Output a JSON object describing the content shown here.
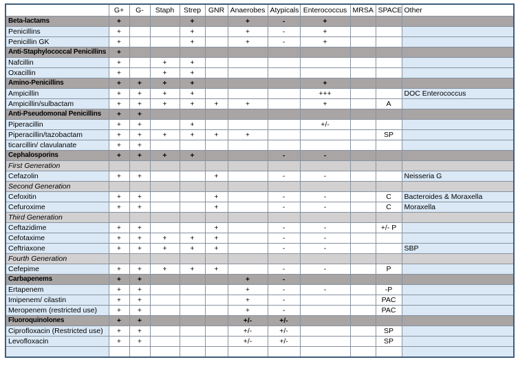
{
  "colors": {
    "positive_green": "#e2efda",
    "negative_red": "#f9998a",
    "partial_yellow": "#fcf0c8",
    "category_gray": "#a9a5a5",
    "generation_gray": "#d2d0d0",
    "label_blue": "#dbe9f6",
    "outer_border": "#3e5c7a"
  },
  "table": {
    "columns": [
      "",
      "G+",
      "G-",
      "Staph",
      "Strep",
      "GNR",
      "Anaerobes",
      "Atypicals",
      "Enterococcus",
      "MRSA",
      "SPACE",
      "Other"
    ],
    "rows": [
      {
        "label": "Beta-lactams",
        "type": "category",
        "cells": [
          "+",
          "",
          "",
          "+",
          "",
          "+",
          "-",
          "+",
          "",
          "",
          ""
        ]
      },
      {
        "label": "Penicillins",
        "type": "drug",
        "cells": [
          "+|g",
          "",
          "",
          "+|g",
          "",
          "+|g",
          "-|r",
          "+|g",
          "",
          "",
          ""
        ]
      },
      {
        "label": "Penicillin GK",
        "type": "drug",
        "cells": [
          "+|g",
          "",
          "",
          "+|g",
          "",
          "+|g",
          "-|r",
          "+|g",
          "",
          "",
          ""
        ]
      },
      {
        "label": "Anti-Staphylococcal Penicillins",
        "type": "category",
        "cells": [
          "+",
          "",
          "",
          "",
          "",
          "",
          "",
          "",
          "",
          "",
          ""
        ]
      },
      {
        "label": "Nafcillin",
        "type": "drug",
        "cells": [
          "+|g",
          "",
          "+|g",
          "+|g",
          "",
          "",
          "",
          "",
          "",
          "",
          ""
        ]
      },
      {
        "label": "Oxacillin",
        "type": "drug",
        "cells": [
          "+|g",
          "",
          "+|g",
          "+|g",
          "",
          "",
          "",
          "",
          "",
          "",
          ""
        ]
      },
      {
        "label": "Amino-Penicillins",
        "type": "category",
        "cells": [
          "+",
          "+",
          "+",
          "+",
          "",
          "",
          "",
          "+",
          "",
          "",
          ""
        ]
      },
      {
        "label": "Ampicillin",
        "type": "drug",
        "cells": [
          "+|g",
          "+|g",
          "+|g",
          "+|g",
          "",
          "",
          "",
          "+++|g",
          "",
          "",
          "DOC Enterococcus"
        ]
      },
      {
        "label": "Ampicillin/sulbactam",
        "type": "drug",
        "cells": [
          "+|g",
          "+|g",
          "+|g",
          "+|g",
          "+|g",
          "+|g",
          "",
          "+|g",
          "",
          "A|g",
          ""
        ]
      },
      {
        "label": "Anti-Pseudomonal Penicillins",
        "type": "category",
        "cells": [
          "+",
          "+",
          "",
          "",
          "",
          "",
          "",
          "",
          "",
          "",
          ""
        ]
      },
      {
        "label": "Piperacillin",
        "type": "drug",
        "cells": [
          "+|g",
          "+|g",
          "",
          "+|g",
          "",
          "",
          "",
          "+/-|y",
          "",
          "",
          ""
        ]
      },
      {
        "label": "Piperacillin/tazobactam",
        "type": "drug",
        "cells": [
          "+|g",
          "+|g",
          "+|g",
          "+|g",
          "+|g",
          "+|g",
          "",
          "",
          "",
          "SP|g",
          ""
        ]
      },
      {
        "label": "ticarcillin/ clavulanate",
        "type": "drug",
        "cells": [
          "+|g",
          "+|g",
          "",
          "",
          "",
          "",
          "",
          "",
          "",
          "",
          ""
        ]
      },
      {
        "label": "Cephalosporins",
        "type": "category",
        "cells": [
          "+",
          "+",
          "+",
          "+",
          "",
          "",
          "-",
          "-",
          "",
          "",
          ""
        ]
      },
      {
        "label": "First Generation",
        "type": "subheader",
        "cells": [
          "",
          "",
          "",
          "",
          "",
          "",
          "",
          "",
          "",
          "",
          ""
        ]
      },
      {
        "label": "Cefazolin",
        "type": "drug",
        "cells": [
          "+|g",
          "+|g",
          "",
          "",
          "+|g",
          "",
          "-|r",
          "-|r",
          "",
          "",
          "Neisseria G"
        ]
      },
      {
        "label": "Second Generation",
        "type": "subheader",
        "cells": [
          "",
          "",
          "",
          "",
          "",
          "",
          "",
          "",
          "",
          "",
          ""
        ]
      },
      {
        "label": "Cefoxitin",
        "type": "drug",
        "cells": [
          "+|g",
          "+|g",
          "",
          "",
          "+|g",
          "",
          "-|r",
          "-|r",
          "",
          "C|g",
          "Bacteroides & Moraxella"
        ]
      },
      {
        "label": "Cefuroxime",
        "type": "drug",
        "cells": [
          "+|g",
          "+|g",
          "",
          "",
          "+|g",
          "",
          "-|r",
          "-|r",
          "",
          "C|g",
          "Moraxella"
        ]
      },
      {
        "label": "Third Generation",
        "type": "subheader",
        "cells": [
          "",
          "",
          "",
          "",
          "",
          "",
          "",
          "",
          "",
          "",
          ""
        ]
      },
      {
        "label": "Ceftazidime",
        "type": "drug",
        "cells": [
          "+|g",
          "+|g",
          "",
          "",
          "+|g",
          "",
          "-|r",
          "-|r",
          "",
          "+/- P|y",
          ""
        ]
      },
      {
        "label": "Cefotaxime",
        "type": "drug",
        "cells": [
          "+|g",
          "+|g",
          "+|g",
          "+|g",
          "+|g",
          "",
          "-|r",
          "-|r",
          "",
          "",
          ""
        ]
      },
      {
        "label": "Ceftriaxone",
        "type": "drug",
        "cells": [
          "+|g",
          "+|g",
          "+|g",
          "+|g",
          "+|g",
          "",
          "-|r",
          "-|r",
          "",
          "",
          "SBP"
        ]
      },
      {
        "label": "Fourth Generation",
        "type": "subheader",
        "cells": [
          "",
          "",
          "",
          "",
          "",
          "",
          "",
          "",
          "",
          "",
          ""
        ]
      },
      {
        "label": "Cefepime",
        "type": "drug",
        "cells": [
          "+|g",
          "+|g",
          "+|g",
          "+|g",
          "+|g",
          "",
          "-|r",
          "-|r",
          "",
          "P|g",
          ""
        ]
      },
      {
        "label": "Carbapenems",
        "type": "category",
        "cells": [
          "+",
          "+",
          "",
          "",
          "",
          "+",
          "-",
          "",
          "",
          "",
          ""
        ]
      },
      {
        "label": "Ertapenem",
        "type": "drug",
        "cells": [
          "+|g",
          "+|g",
          "",
          "",
          "",
          "+|g",
          "-|r",
          "-|r",
          "",
          "-P|r",
          ""
        ]
      },
      {
        "label": "Imipenem/ cilastin",
        "type": "drug",
        "cells": [
          "+|g",
          "+|g",
          "",
          "",
          "",
          "+|g",
          "-|r",
          "",
          "",
          "PAC|g",
          ""
        ]
      },
      {
        "label": "Meropenem (restricted use)",
        "type": "drug",
        "cells": [
          "+|g",
          "+|g",
          "",
          "",
          "",
          "+|g",
          "-|r",
          "",
          "",
          "PAC|w",
          ""
        ]
      },
      {
        "label": "Fluoroquinolones",
        "type": "category",
        "cells": [
          "+",
          "+",
          "",
          "",
          "",
          "+/-",
          "+/-",
          "",
          "",
          "",
          ""
        ]
      },
      {
        "label": "Ciprofloxacin (Restricted use)",
        "type": "drug",
        "cells": [
          "+|g",
          "+|g",
          "",
          "",
          "",
          "+/-|y",
          "+/-|y",
          "",
          "",
          "SP|g",
          ""
        ]
      },
      {
        "label": "Levofloxacin",
        "type": "drug",
        "cells": [
          "+|g",
          "+|g",
          "",
          "",
          "",
          "+/-|y",
          "+/-|y",
          "",
          "",
          "SP|g",
          ""
        ]
      },
      {
        "label": "",
        "type": "drug",
        "cells": [
          "|g",
          "|g",
          "",
          "",
          "",
          "|y",
          "|y",
          "",
          "",
          "|g",
          ""
        ]
      }
    ]
  }
}
